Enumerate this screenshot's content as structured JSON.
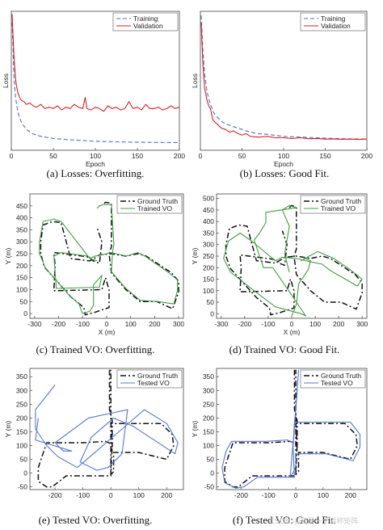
{
  "watermark": "CSDN @我是一个对称矩阵",
  "colors": {
    "training": "#4a6fd4",
    "validation": "#d62020",
    "ground_truth": "#111111",
    "trained": "#3fa03f",
    "tested": "#5577d6"
  },
  "chart_data": [
    {
      "id": "a",
      "type": "line",
      "caption": "(a) Losses: Overfitting.",
      "xlabel": "Epoch",
      "ylabel": "Loss",
      "xlim": [
        0,
        200
      ],
      "xticks": [
        0,
        50,
        100,
        150,
        200
      ],
      "ylim": [
        0,
        1
      ],
      "show_yticks": false,
      "legend": "top-right",
      "series": [
        {
          "name": "Training",
          "style": "dashed",
          "color": "#4a6fd4",
          "x": [
            1,
            3,
            5,
            8,
            12,
            18,
            25,
            35,
            50,
            70,
            100,
            130,
            160,
            200
          ],
          "y": [
            0.92,
            0.55,
            0.38,
            0.27,
            0.2,
            0.15,
            0.12,
            0.1,
            0.085,
            0.075,
            0.065,
            0.06,
            0.057,
            0.055
          ]
        },
        {
          "name": "Validation",
          "style": "solid",
          "color": "#d62020",
          "x": [
            1,
            2,
            3,
            4,
            5,
            6,
            8,
            10,
            12,
            15,
            18,
            22,
            26,
            30,
            35,
            40,
            45,
            50,
            55,
            60,
            65,
            70,
            75,
            80,
            85,
            88,
            90,
            95,
            100,
            105,
            110,
            115,
            120,
            125,
            130,
            135,
            140,
            145,
            150,
            155,
            160,
            165,
            170,
            175,
            180,
            185,
            190,
            195,
            200
          ],
          "y": [
            0.98,
            0.83,
            0.7,
            0.6,
            0.52,
            0.47,
            0.41,
            0.38,
            0.36,
            0.35,
            0.33,
            0.34,
            0.32,
            0.31,
            0.33,
            0.3,
            0.31,
            0.3,
            0.32,
            0.29,
            0.31,
            0.3,
            0.33,
            0.31,
            0.3,
            0.38,
            0.3,
            0.29,
            0.31,
            0.3,
            0.28,
            0.32,
            0.3,
            0.31,
            0.29,
            0.3,
            0.35,
            0.3,
            0.31,
            0.29,
            0.33,
            0.3,
            0.3,
            0.31,
            0.29,
            0.3,
            0.32,
            0.3,
            0.31
          ]
        }
      ]
    },
    {
      "id": "b",
      "type": "line",
      "caption": "(b) Losses: Good Fit.",
      "xlabel": "Epoch",
      "ylabel": "Loss",
      "xlim": [
        0,
        200
      ],
      "xticks": [
        0,
        50,
        100,
        150,
        200
      ],
      "ylim": [
        0,
        1
      ],
      "show_yticks": false,
      "legend": "top-right",
      "series": [
        {
          "name": "Training",
          "style": "dashed",
          "color": "#4a6fd4",
          "x": [
            1,
            3,
            5,
            8,
            12,
            16,
            20,
            25,
            30,
            40,
            50,
            60,
            70,
            80,
            100,
            120,
            140,
            160,
            180,
            200
          ],
          "y": [
            0.97,
            0.72,
            0.55,
            0.42,
            0.33,
            0.27,
            0.24,
            0.21,
            0.19,
            0.17,
            0.15,
            0.13,
            0.12,
            0.115,
            0.1,
            0.095,
            0.09,
            0.085,
            0.082,
            0.08
          ]
        },
        {
          "name": "Validation",
          "style": "solid",
          "color": "#d62020",
          "x": [
            1,
            3,
            5,
            8,
            10,
            12,
            15,
            18,
            20,
            25,
            30,
            35,
            40,
            45,
            50,
            55,
            60,
            70,
            80,
            90,
            100,
            110,
            120,
            130,
            140,
            150,
            160,
            170,
            180,
            190,
            200
          ],
          "y": [
            0.92,
            0.62,
            0.45,
            0.36,
            0.32,
            0.3,
            0.22,
            0.2,
            0.19,
            0.16,
            0.15,
            0.13,
            0.14,
            0.12,
            0.11,
            0.12,
            0.1,
            0.095,
            0.1,
            0.09,
            0.09,
            0.085,
            0.09,
            0.083,
            0.085,
            0.08,
            0.082,
            0.079,
            0.08,
            0.078,
            0.08
          ]
        }
      ]
    },
    {
      "id": "c",
      "type": "line",
      "caption": "(c) Trained VO: Overfitting.",
      "xlabel": "X (m)",
      "ylabel": "Y (m)",
      "xlim": [
        -320,
        320
      ],
      "ylim": [
        -20,
        500
      ],
      "xticks": [
        -300,
        -200,
        -100,
        0,
        100,
        200,
        300
      ],
      "yticks": [
        0,
        50,
        100,
        150,
        200,
        250,
        300,
        350,
        400,
        450
      ],
      "legend": "top-right",
      "series": [
        {
          "name": "Ground Truth",
          "style": "dashdot",
          "color": "#111111",
          "x": [
            -10,
            -5,
            15,
            20,
            20,
            10,
            20,
            80,
            140,
            210,
            275,
            300,
            300,
            270,
            165,
            130,
            80,
            20,
            -30,
            -60,
            -70,
            -150,
            -190,
            -225,
            -265,
            -275,
            -275,
            -260,
            -150,
            -95,
            -90,
            -90,
            -50,
            10,
            10,
            -5,
            -20,
            -220,
            -215,
            -220,
            -100,
            -75,
            -55,
            -30,
            -20,
            -40
          ],
          "x_note": "estimated path",
          "y": [
            460,
            465,
            462,
            460,
            280,
            250,
            170,
            100,
            50,
            50,
            20,
            90,
            135,
            170,
            240,
            250,
            240,
            250,
            245,
            225,
            220,
            230,
            380,
            385,
            370,
            300,
            250,
            195,
            70,
            25,
            0,
            -5,
            5,
            25,
            100,
            150,
            100,
            95,
            200,
            255,
            240,
            235,
            220,
            210,
            300,
            360
          ]
        },
        {
          "name": "Trained VO",
          "style": "solid",
          "color": "#3fa03f",
          "x": [
            -40,
            -30,
            -15,
            -5,
            20,
            30,
            25,
            20,
            80,
            140,
            215,
            280,
            295,
            295,
            260,
            160,
            130,
            80,
            20,
            -20,
            -50,
            -70,
            -190,
            -220,
            -265,
            -280,
            -280,
            -255,
            -155,
            -115,
            -105,
            -100,
            -70,
            -55,
            -55,
            -20,
            -30,
            -210,
            -220,
            -190,
            -80,
            -70,
            -70,
            -40
          ],
          "y": [
            440,
            450,
            455,
            455,
            455,
            290,
            260,
            175,
            105,
            55,
            50,
            40,
            95,
            140,
            170,
            240,
            255,
            240,
            255,
            245,
            240,
            230,
            385,
            395,
            385,
            300,
            250,
            190,
            75,
            40,
            10,
            0,
            10,
            35,
            120,
            160,
            110,
            105,
            240,
            255,
            240,
            235,
            230,
            220
          ]
        }
      ]
    },
    {
      "id": "d",
      "type": "line",
      "caption": "(d) Trained VO: Good Fit.",
      "xlabel": "X (m)",
      "ylabel": "Y (m)",
      "xlim": [
        -320,
        320
      ],
      "ylim": [
        -20,
        520
      ],
      "xticks": [
        -300,
        -200,
        -100,
        0,
        100,
        200,
        300
      ],
      "yticks": [
        0,
        50,
        100,
        150,
        200,
        250,
        300,
        350,
        400,
        450,
        500
      ],
      "legend": "top-right",
      "series": [
        {
          "name": "Ground Truth",
          "style": "dashdot",
          "color": "#111111",
          "x": [
            -10,
            0,
            15,
            20,
            20,
            10,
            20,
            80,
            140,
            210,
            275,
            300,
            300,
            270,
            165,
            130,
            80,
            20,
            -30,
            -60,
            -70,
            -150,
            -190,
            -225,
            -265,
            -280,
            -280,
            -260,
            -150,
            -95,
            -90,
            -90,
            -50,
            10,
            10,
            -5,
            -20,
            -220,
            -215,
            -220,
            -100,
            -75,
            -55,
            -30,
            -20,
            -40
          ],
          "y": [
            460,
            470,
            465,
            460,
            280,
            250,
            170,
            100,
            50,
            50,
            20,
            90,
            135,
            170,
            240,
            250,
            240,
            250,
            245,
            225,
            220,
            230,
            380,
            385,
            370,
            300,
            250,
            195,
            70,
            25,
            0,
            -5,
            5,
            25,
            100,
            150,
            100,
            95,
            200,
            255,
            240,
            235,
            220,
            210,
            300,
            360
          ]
        },
        {
          "name": "Trained VO",
          "style": "solid",
          "color": "#3fa03f",
          "x": [
            0,
            20,
            30,
            70,
            80,
            60,
            40,
            110,
            180,
            250,
            300,
            280,
            160,
            130,
            80,
            20,
            -40,
            -70,
            -170,
            -220,
            -270,
            -290,
            -260,
            -160,
            -70,
            40,
            60,
            -80,
            -120,
            -160,
            -140,
            -110,
            -110,
            20,
            -10,
            -40,
            -10,
            -30,
            -10
          ],
          "y": [
            -10,
            40,
            130,
            190,
            230,
            240,
            230,
            270,
            240,
            190,
            150,
            120,
            190,
            215,
            225,
            240,
            245,
            230,
            315,
            350,
            315,
            240,
            180,
            100,
            30,
            0,
            -10,
            200,
            200,
            320,
            345,
            395,
            440,
            460,
            470,
            450,
            380,
            260,
            180
          ]
        }
      ]
    },
    {
      "id": "e",
      "type": "line",
      "caption": "(e) Tested VO: Overfitting.",
      "xlabel": "",
      "ylabel": "Y (m)",
      "xlim": [
        -290,
        260
      ],
      "ylim": [
        -60,
        380
      ],
      "xticks": [
        -200,
        -100,
        0,
        100,
        200
      ],
      "yticks": [
        -50,
        0,
        50,
        100,
        150,
        200,
        250,
        300,
        350
      ],
      "legend": "top-right",
      "series": [
        {
          "name": "Ground Truth",
          "style": "dashdot",
          "color": "#111111",
          "x": [
            -5,
            -5,
            -5,
            5,
            5,
            0,
            180,
            220,
            225,
            200,
            100,
            10,
            10,
            10,
            0,
            5,
            -20,
            -100,
            -140,
            -230,
            -240,
            -260,
            -260,
            -230,
            -210,
            -160,
            -40,
            0,
            0,
            0
          ],
          "y": [
            375,
            300,
            230,
            190,
            95,
            180,
            180,
            140,
            100,
            50,
            75,
            75,
            30,
            5,
            -5,
            105,
            115,
            110,
            110,
            110,
            80,
            20,
            -30,
            -50,
            -50,
            -10,
            -10,
            -10,
            100,
            375
          ]
        },
        {
          "name": "Tested VO",
          "style": "solid",
          "color": "#5577d6",
          "x": [
            -200,
            -270,
            -270,
            -230,
            -190,
            -120,
            40,
            120,
            200,
            240,
            230,
            80,
            10,
            -70,
            -110,
            -50,
            -10,
            40,
            60,
            -80,
            -200,
            -170,
            -140,
            -270,
            -260
          ],
          "y": [
            320,
            230,
            160,
            100,
            60,
            20,
            160,
            230,
            180,
            110,
            70,
            170,
            200,
            130,
            40,
            10,
            20,
            70,
            230,
            200,
            110,
            80,
            80,
            120,
            200
          ]
        }
      ]
    },
    {
      "id": "f",
      "type": "line",
      "caption": "(f) Tested VO: Good Fit.",
      "xlabel": "",
      "ylabel": "Y (m)",
      "xlim": [
        -290,
        260
      ],
      "ylim": [
        -60,
        380
      ],
      "xticks": [
        -200,
        -100,
        0,
        100,
        200
      ],
      "yticks": [
        -50,
        0,
        50,
        100,
        150,
        200,
        250,
        300,
        350
      ],
      "legend": "top-right",
      "series": [
        {
          "name": "Ground Truth",
          "style": "dashdot",
          "color": "#111111",
          "x": [
            -5,
            -5,
            -5,
            5,
            5,
            0,
            180,
            220,
            225,
            200,
            100,
            10,
            10,
            10,
            0,
            5,
            -20,
            -100,
            -140,
            -230,
            -240,
            -260,
            -260,
            -230,
            -210,
            -160,
            -40,
            0,
            0,
            0
          ],
          "y": [
            375,
            300,
            230,
            190,
            95,
            180,
            180,
            140,
            100,
            50,
            75,
            75,
            30,
            5,
            -5,
            105,
            115,
            110,
            110,
            110,
            80,
            20,
            -30,
            -50,
            -50,
            -10,
            -10,
            -10,
            100,
            375
          ]
        },
        {
          "name": "Tested VO",
          "style": "solid",
          "color": "#5577d6",
          "x": [
            10,
            5,
            0,
            -5,
            -10,
            -5,
            200,
            235,
            235,
            210,
            110,
            0,
            0,
            -10,
            -20,
            -10,
            -30,
            -110,
            -150,
            -235,
            -255,
            -270,
            -260,
            -220,
            -190,
            -140,
            -30,
            -5,
            -10,
            10
          ],
          "y": [
            375,
            300,
            230,
            185,
            100,
            185,
            185,
            140,
            95,
            45,
            70,
            70,
            25,
            0,
            -10,
            110,
            120,
            115,
            115,
            115,
            80,
            20,
            -35,
            -55,
            -50,
            -15,
            -15,
            -15,
            95,
            375
          ]
        }
      ]
    }
  ]
}
